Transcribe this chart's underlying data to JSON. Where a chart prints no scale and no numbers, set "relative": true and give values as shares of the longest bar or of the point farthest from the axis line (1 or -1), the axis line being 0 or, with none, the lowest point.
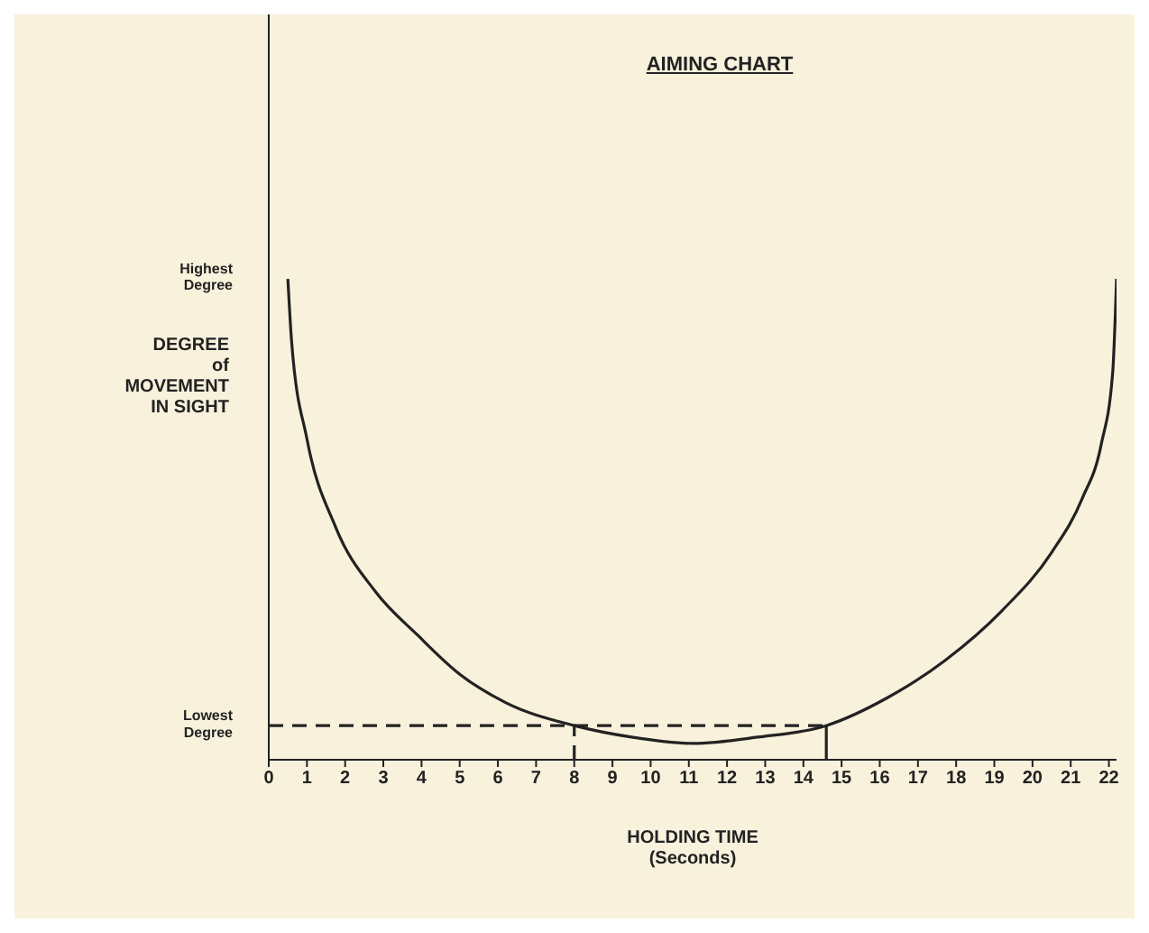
{
  "chart_data": {
    "type": "line",
    "title": "AIMING CHART",
    "xlabel": "HOLDING TIME\n(Seconds)",
    "ylabel": "DEGREE\nof\nMOVEMENT\nIN SIGHT",
    "relative": true,
    "xlim": [
      0,
      22.2
    ],
    "xticks": [
      0,
      1,
      2,
      3,
      4,
      5,
      6,
      7,
      8,
      9,
      10,
      11,
      12,
      13,
      14,
      15,
      16,
      17,
      18,
      19,
      20,
      21,
      22
    ],
    "annotations": [
      "Highest\nDegree",
      "Lowest\nDegree"
    ],
    "marker": "none",
    "series": [
      {
        "color": "#222222",
        "line_style": "solid",
        "x": [
          0.5,
          0.6,
          1.0,
          1.75,
          2.8,
          3.9,
          5.0,
          6.2,
          8.0,
          9.5,
          11.1,
          12.8,
          14.6,
          16.2,
          17.7,
          19.2,
          20.5,
          21.3,
          21.8,
          22.1,
          22.2
        ],
        "values": [
          1,
          0.868,
          0.667,
          0.484,
          0.349,
          0.259,
          0.178,
          0.119,
          0.071,
          0.047,
          0.034,
          0.047,
          0.071,
          0.129,
          0.206,
          0.31,
          0.431,
          0.543,
          0.656,
          0.806,
          1
        ]
      },
      {
        "color": "#222222",
        "line_style": "dashed",
        "x": [
          0,
          14.6
        ],
        "values": [
          0.071,
          0.071
        ]
      },
      {
        "color": "#222222",
        "line_style": "dashed",
        "x": [
          8,
          8
        ],
        "values": [
          0,
          0.071
        ]
      },
      {
        "color": "#222222",
        "line_style": "solid",
        "x": [
          14.6,
          14.6
        ],
        "values": [
          0,
          0.071
        ]
      }
    ]
  }
}
